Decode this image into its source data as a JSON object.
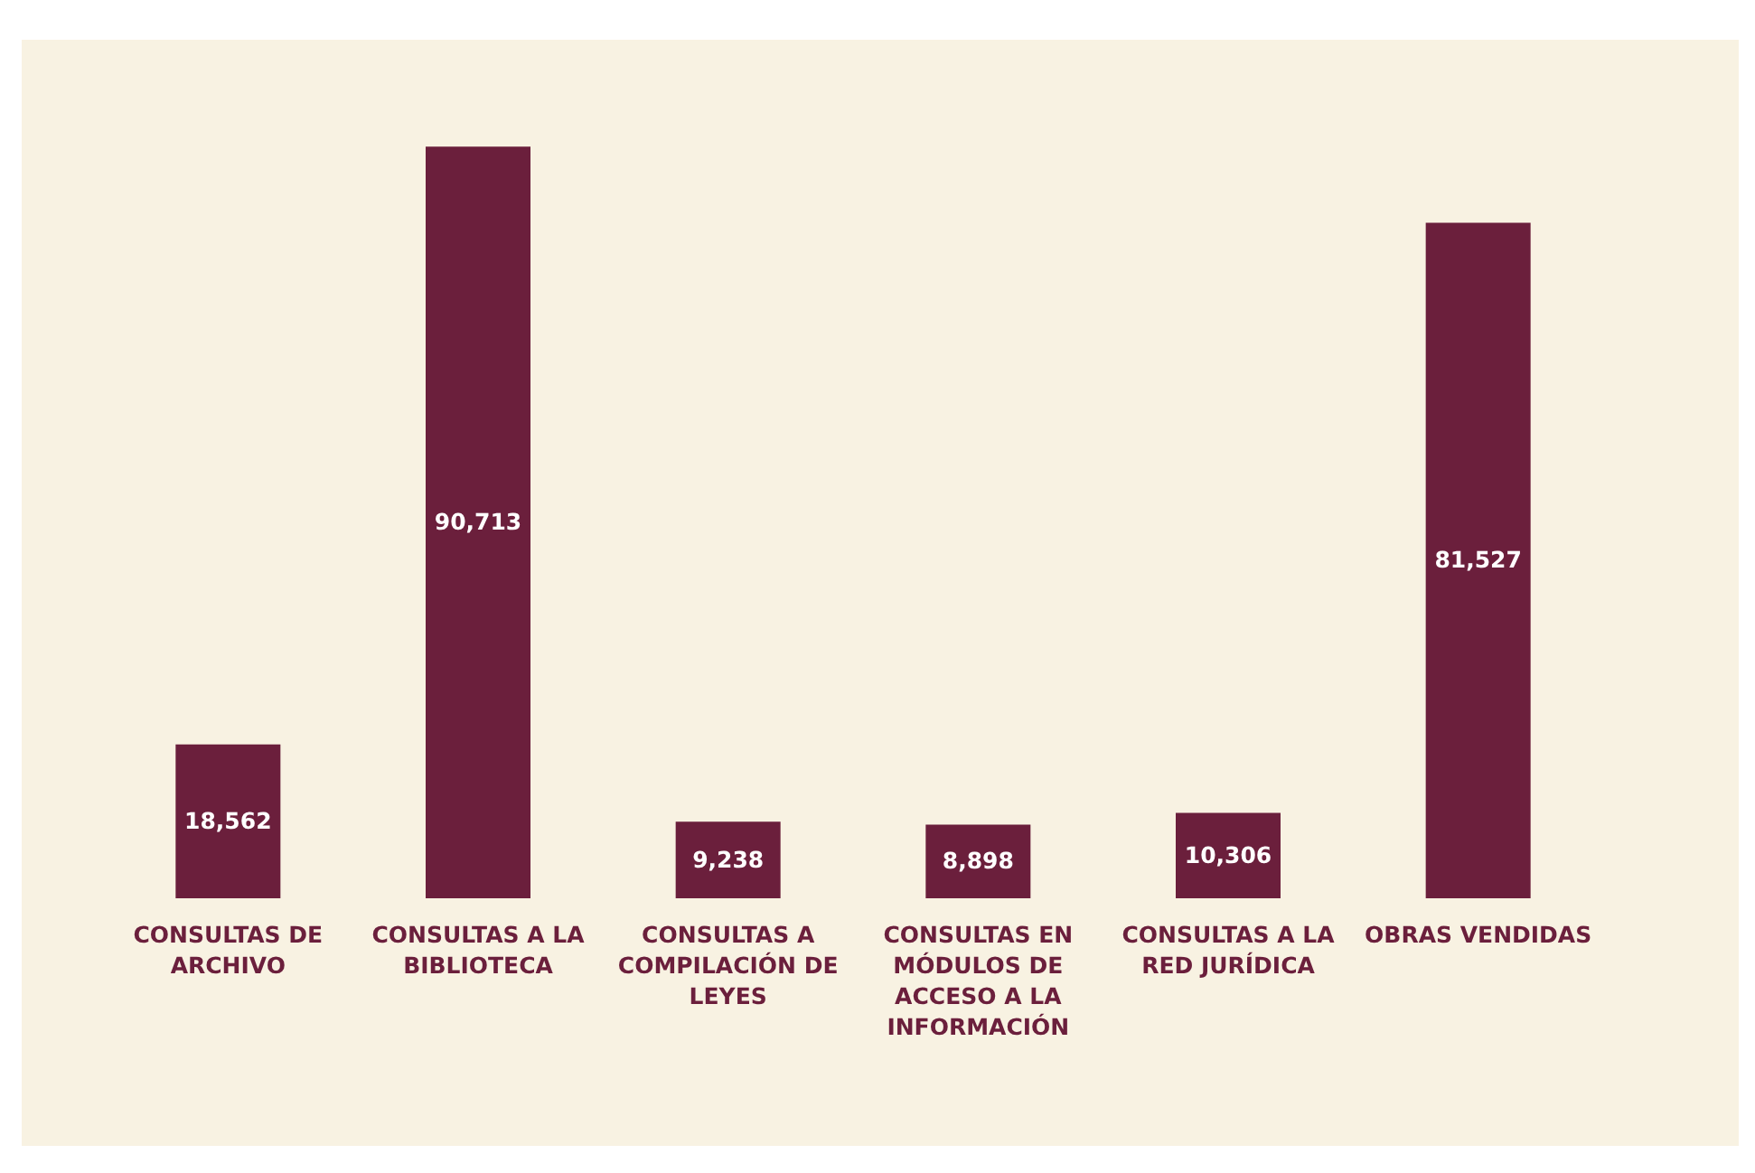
{
  "chart_data": {
    "type": "bar",
    "categories": [
      "CONSULTAS DE ARCHIVO",
      "CONSULTAS A LA BIBLIOTECA",
      "CONSULTAS A COMPILACIÓN DE LEYES",
      "CONSULTAS EN MÓDULOS DE ACCESO A LA INFORMACIÓN",
      "CONSULTAS A LA RED JURÍDICA",
      "OBRAS VENDIDAS"
    ],
    "values": [
      18562,
      90713,
      9238,
      8898,
      10306,
      81527
    ],
    "value_labels": [
      "18,562",
      "90,713",
      "9,238",
      "8,898",
      "10,306",
      "81,527"
    ],
    "color": "#6b1f3c"
  }
}
